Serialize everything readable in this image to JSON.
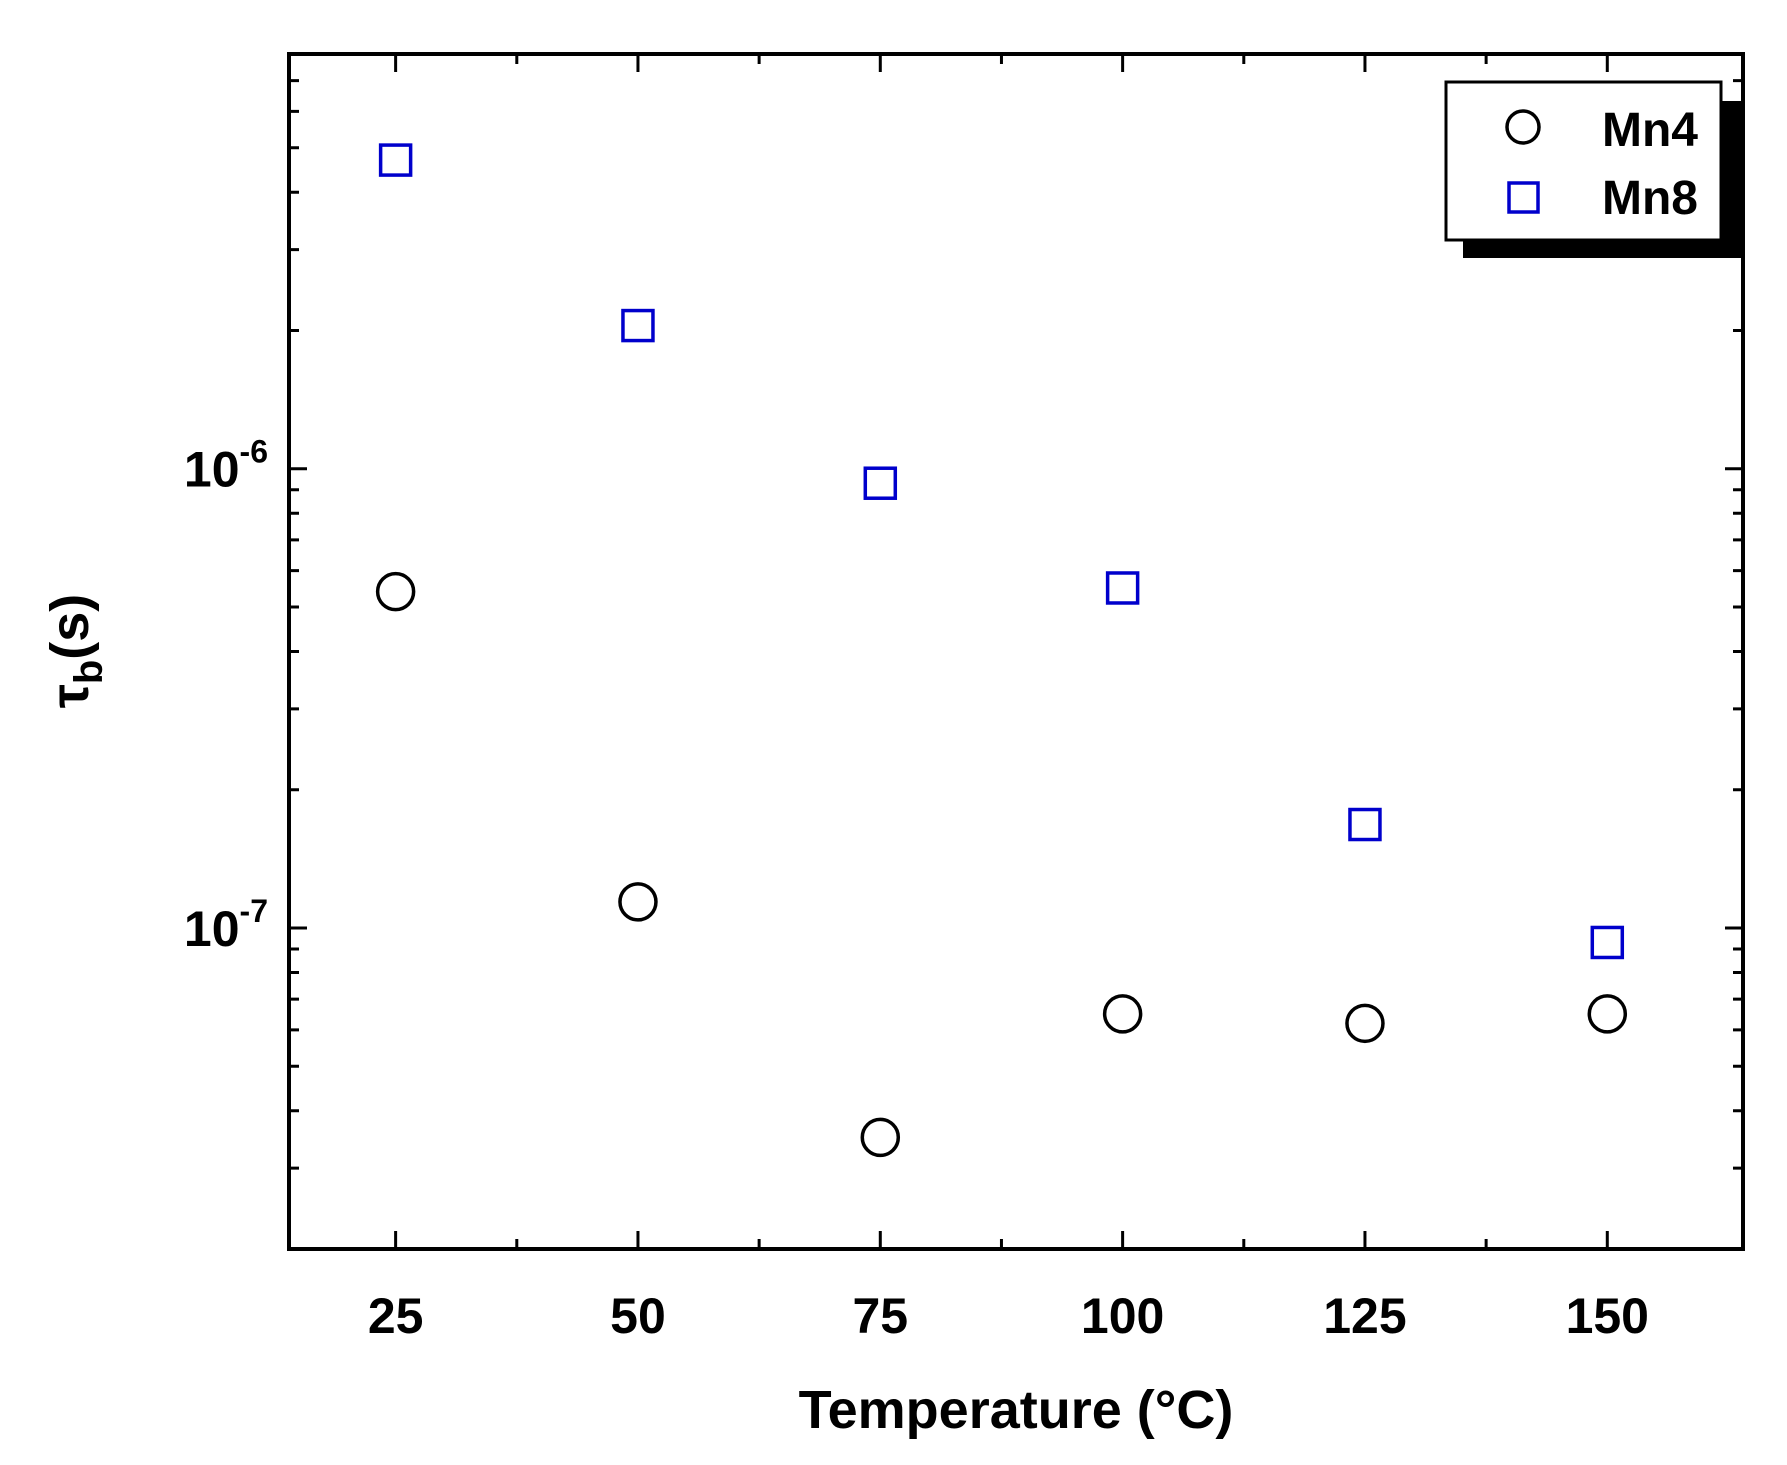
{
  "chart_data": {
    "type": "scatter",
    "xlabel": "Temperature (°C)",
    "ylabel_main": "τ",
    "ylabel_sub": "b",
    "ylabel_unit": "(s)",
    "y_scale": "log",
    "xlim": [
      14,
      164
    ],
    "ylim": [
      2e-08,
      8e-06
    ],
    "x_ticks": [
      25,
      50,
      75,
      100,
      125,
      150
    ],
    "x_tick_labels": [
      "25",
      "50",
      "75",
      "100",
      "125",
      "150"
    ],
    "x_minor_ticks": [
      37.5,
      62.5,
      87.5,
      112.5,
      137.5
    ],
    "y_major_ticks": [
      {
        "value": 1e-07,
        "base": "10",
        "exp": "-7"
      },
      {
        "value": 1e-06,
        "base": "10",
        "exp": "-6"
      }
    ],
    "y_minor_ticks": [
      3e-08,
      4e-08,
      5e-08,
      6e-08,
      7e-08,
      8e-08,
      9e-08,
      2e-07,
      3e-07,
      4e-07,
      5e-07,
      6e-07,
      7e-07,
      8e-07,
      9e-07,
      2e-06,
      3e-06,
      4e-06,
      5e-06,
      6e-06,
      7e-06
    ],
    "legend_position": "top-right",
    "series": [
      {
        "name": "Mn4",
        "marker": "circle",
        "color": "#000000",
        "x": [
          25,
          50,
          75,
          100,
          125,
          150
        ],
        "y": [
          5.4e-07,
          1.14e-07,
          3.5e-08,
          6.5e-08,
          6.2e-08,
          6.5e-08
        ]
      },
      {
        "name": "Mn8",
        "marker": "square",
        "color": "#0000cc",
        "x": [
          25,
          50,
          75,
          100,
          125,
          150
        ],
        "y": [
          4.7e-06,
          2.05e-06,
          9.3e-07,
          5.5e-07,
          1.68e-07,
          9.3e-08
        ]
      }
    ]
  }
}
